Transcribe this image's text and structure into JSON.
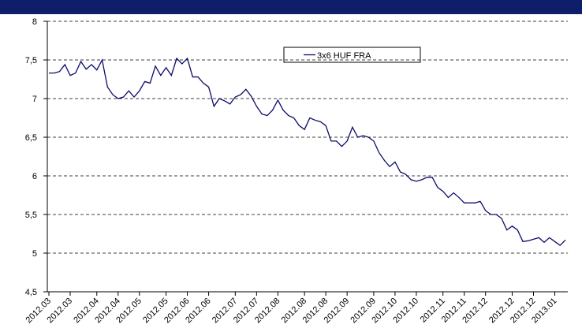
{
  "chart_data": {
    "type": "line",
    "categories": [
      "2012.03",
      null,
      null,
      null,
      "2012.03",
      null,
      null,
      null,
      null,
      "2012.04",
      null,
      null,
      null,
      "2012.04",
      null,
      null,
      null,
      "2012.05",
      null,
      null,
      null,
      null,
      "2012.05",
      null,
      null,
      null,
      "2012.06",
      null,
      null,
      null,
      "2012.06",
      null,
      null,
      null,
      null,
      "2012.07",
      null,
      null,
      null,
      "2012.07",
      null,
      null,
      null,
      "2012.08",
      null,
      null,
      null,
      null,
      "2012.08",
      null,
      null,
      null,
      "2012.08",
      null,
      null,
      null,
      "2012.09",
      null,
      null,
      null,
      null,
      "2012.09",
      null,
      null,
      null,
      "2012.10",
      null,
      null,
      null,
      "2012.10",
      null,
      null,
      null,
      null,
      "2012.11",
      null,
      null,
      null,
      "2012.11",
      null,
      null,
      null,
      "2012.12",
      null,
      null,
      null,
      null,
      "2012.12",
      null,
      null,
      null,
      "2012.12",
      null,
      null,
      null,
      "2013.01",
      null,
      null
    ],
    "series": [
      {
        "name": "3x6 HUF FRA",
        "color": "#0b0b6b",
        "values": [
          7.33,
          7.33,
          7.35,
          7.44,
          7.3,
          7.33,
          7.48,
          7.38,
          7.44,
          7.37,
          7.5,
          7.15,
          7.05,
          7.0,
          7.02,
          7.1,
          7.02,
          7.1,
          7.22,
          7.2,
          7.42,
          7.3,
          7.4,
          7.3,
          7.52,
          7.45,
          7.52,
          7.28,
          7.28,
          7.2,
          7.15,
          6.9,
          7.0,
          6.97,
          6.93,
          7.02,
          7.05,
          7.12,
          7.03,
          6.9,
          6.8,
          6.78,
          6.85,
          6.98,
          6.85,
          6.78,
          6.75,
          6.65,
          6.6,
          6.75,
          6.72,
          6.7,
          6.65,
          6.45,
          6.45,
          6.38,
          6.45,
          6.63,
          6.5,
          6.52,
          6.5,
          6.45,
          6.3,
          6.2,
          6.12,
          6.18,
          6.05,
          6.02,
          5.95,
          5.93,
          5.95,
          5.98,
          5.98,
          5.85,
          5.8,
          5.72,
          5.78,
          5.72,
          5.65,
          5.65,
          5.65,
          5.67,
          5.55,
          5.5,
          5.5,
          5.45,
          5.3,
          5.35,
          5.3,
          5.15,
          5.16,
          5.18,
          5.2,
          5.14,
          5.2,
          5.15,
          5.1,
          5.17
        ]
      }
    ],
    "ylim": [
      4.5,
      8
    ],
    "yticks": [
      {
        "value": 4.5,
        "label": "4,5"
      },
      5,
      {
        "value": 5.5,
        "label": "5,5"
      },
      6,
      {
        "value": 6.5,
        "label": "6,5"
      },
      7,
      {
        "value": 7.5,
        "label": "7,5"
      },
      8
    ],
    "grid": true
  }
}
